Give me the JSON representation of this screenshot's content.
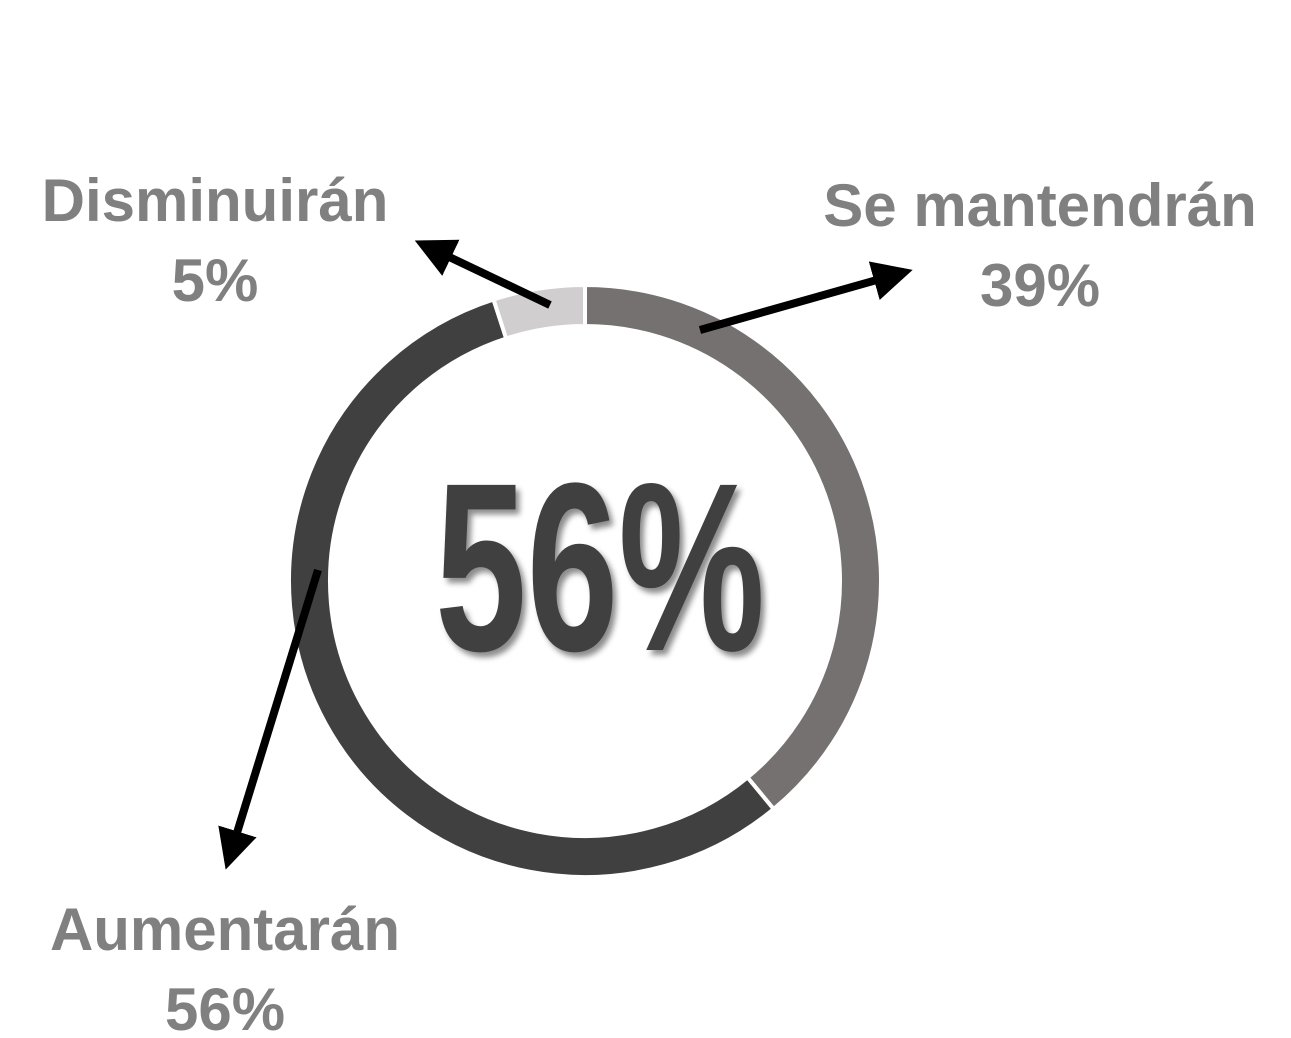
{
  "chart_data": {
    "type": "donut",
    "categories": [
      "Se mantendrán",
      "Aumentarán",
      "Disminuirán"
    ],
    "values": [
      39,
      56,
      5
    ],
    "value_labels": [
      "39%",
      "56%",
      "5%"
    ],
    "colors": [
      "#767171",
      "#404040",
      "#d0cece"
    ],
    "center_label": "56%"
  }
}
